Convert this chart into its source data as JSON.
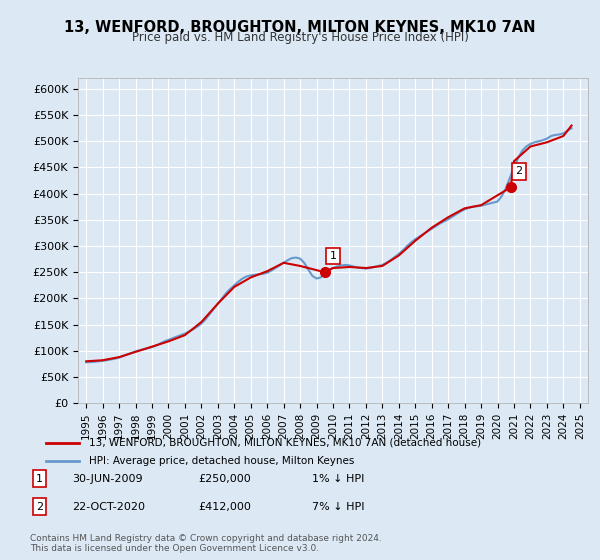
{
  "title": "13, WENFORD, BROUGHTON, MILTON KEYNES, MK10 7AN",
  "subtitle": "Price paid vs. HM Land Registry's House Price Index (HPI)",
  "background_color": "#dce9f5",
  "plot_bg_color": "#dce9f5",
  "ylabel_ticks": [
    "£0",
    "£50K",
    "£100K",
    "£150K",
    "£200K",
    "£250K",
    "£300K",
    "£350K",
    "£400K",
    "£450K",
    "£500K",
    "£550K",
    "£600K"
  ],
  "ytick_values": [
    0,
    50000,
    100000,
    150000,
    200000,
    250000,
    300000,
    350000,
    400000,
    450000,
    500000,
    550000,
    600000
  ],
  "ylim": [
    0,
    620000
  ],
  "xlim_start": 1994.5,
  "xlim_end": 2025.5,
  "hpi_color": "#6699cc",
  "price_color": "#cc0000",
  "marker_color": "#cc0000",
  "sale1_x": 2009.5,
  "sale1_y": 250000,
  "sale1_label": "1",
  "sale2_x": 2020.8,
  "sale2_y": 412000,
  "sale2_label": "2",
  "legend_line1": "13, WENFORD, BROUGHTON, MILTON KEYNES, MK10 7AN (detached house)",
  "legend_line2": "HPI: Average price, detached house, Milton Keynes",
  "note1_label": "1",
  "note1_date": "30-JUN-2009",
  "note1_price": "£250,000",
  "note1_change": "1% ↓ HPI",
  "note2_label": "2",
  "note2_date": "22-OCT-2020",
  "note2_price": "£412,000",
  "note2_change": "7% ↓ HPI",
  "footer": "Contains HM Land Registry data © Crown copyright and database right 2024.\nThis data is licensed under the Open Government Licence v3.0.",
  "hpi_data_x": [
    1995,
    1995.25,
    1995.5,
    1995.75,
    1996,
    1996.25,
    1996.5,
    1996.75,
    1997,
    1997.25,
    1997.5,
    1997.75,
    1998,
    1998.25,
    1998.5,
    1998.75,
    1999,
    1999.25,
    1999.5,
    1999.75,
    2000,
    2000.25,
    2000.5,
    2000.75,
    2001,
    2001.25,
    2001.5,
    2001.75,
    2002,
    2002.25,
    2002.5,
    2002.75,
    2003,
    2003.25,
    2003.5,
    2003.75,
    2004,
    2004.25,
    2004.5,
    2004.75,
    2005,
    2005.25,
    2005.5,
    2005.75,
    2006,
    2006.25,
    2006.5,
    2006.75,
    2007,
    2007.25,
    2007.5,
    2007.75,
    2008,
    2008.25,
    2008.5,
    2008.75,
    2009,
    2009.25,
    2009.5,
    2009.75,
    2010,
    2010.25,
    2010.5,
    2010.75,
    2011,
    2011.25,
    2011.5,
    2011.75,
    2012,
    2012.25,
    2012.5,
    2012.75,
    2013,
    2013.25,
    2013.5,
    2013.75,
    2014,
    2014.25,
    2014.5,
    2014.75,
    2015,
    2015.25,
    2015.5,
    2015.75,
    2016,
    2016.25,
    2016.5,
    2016.75,
    2017,
    2017.25,
    2017.5,
    2017.75,
    2018,
    2018.25,
    2018.5,
    2018.75,
    2019,
    2019.25,
    2019.5,
    2019.75,
    2020,
    2020.25,
    2020.5,
    2020.75,
    2021,
    2021.25,
    2021.5,
    2021.75,
    2022,
    2022.25,
    2022.5,
    2022.75,
    2023,
    2023.25,
    2023.5,
    2023.75,
    2024,
    2024.25,
    2024.5
  ],
  "hpi_data_y": [
    78000,
    78500,
    79000,
    80000,
    81000,
    82000,
    83500,
    85000,
    87000,
    90000,
    93000,
    96000,
    99000,
    101000,
    103000,
    105000,
    107000,
    110000,
    114000,
    118000,
    121000,
    124000,
    127000,
    130000,
    133000,
    137000,
    141000,
    146000,
    152000,
    160000,
    170000,
    180000,
    190000,
    200000,
    210000,
    218000,
    225000,
    232000,
    238000,
    242000,
    244000,
    245000,
    246000,
    247000,
    249000,
    253000,
    258000,
    263000,
    268000,
    273000,
    277000,
    278000,
    276000,
    268000,
    255000,
    243000,
    238000,
    240000,
    248000,
    255000,
    258000,
    261000,
    263000,
    264000,
    263000,
    261000,
    259000,
    258000,
    257000,
    258000,
    260000,
    262000,
    264000,
    268000,
    273000,
    279000,
    285000,
    292000,
    300000,
    307000,
    313000,
    318000,
    323000,
    328000,
    333000,
    338000,
    343000,
    347000,
    351000,
    356000,
    361000,
    366000,
    370000,
    373000,
    375000,
    376000,
    377000,
    379000,
    381000,
    383000,
    385000,
    395000,
    410000,
    430000,
    450000,
    468000,
    482000,
    490000,
    495000,
    498000,
    500000,
    502000,
    505000,
    510000,
    512000,
    513000,
    515000,
    520000,
    525000
  ],
  "price_data_x": [
    1995.0,
    1996.0,
    1997.0,
    1998.0,
    1999.0,
    2000.0,
    2001.0,
    2002.0,
    2003.0,
    2004.0,
    2005.0,
    2006.0,
    2007.0,
    2008.0,
    2009.5,
    2010.0,
    2011.0,
    2012.0,
    2013.0,
    2014.0,
    2015.0,
    2016.0,
    2017.0,
    2018.0,
    2019.0,
    2020.8,
    2021.0,
    2022.0,
    2023.0,
    2024.0,
    2024.5
  ],
  "price_data_y": [
    80000,
    82000,
    88000,
    98000,
    108000,
    118000,
    130000,
    155000,
    190000,
    222000,
    240000,
    252000,
    268000,
    262000,
    250000,
    258000,
    260000,
    258000,
    262000,
    282000,
    310000,
    335000,
    355000,
    372000,
    378000,
    412000,
    462000,
    490000,
    498000,
    510000,
    530000
  ]
}
